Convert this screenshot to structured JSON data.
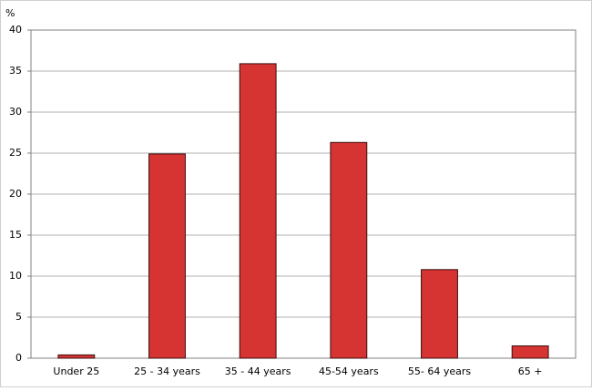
{
  "chart_data": {
    "type": "bar",
    "y_label": "%",
    "categories": [
      "Under 25",
      "25 - 34 years",
      "35 - 44 years",
      "45-54 years",
      "55- 64 years",
      "65 +"
    ],
    "values": [
      0.4,
      24.9,
      35.9,
      26.3,
      10.8,
      1.5
    ],
    "color": "#d63333",
    "ylim": [
      0,
      40
    ],
    "yticks": [
      0,
      5,
      10,
      15,
      20,
      25,
      30,
      35,
      40
    ],
    "grid": true
  }
}
